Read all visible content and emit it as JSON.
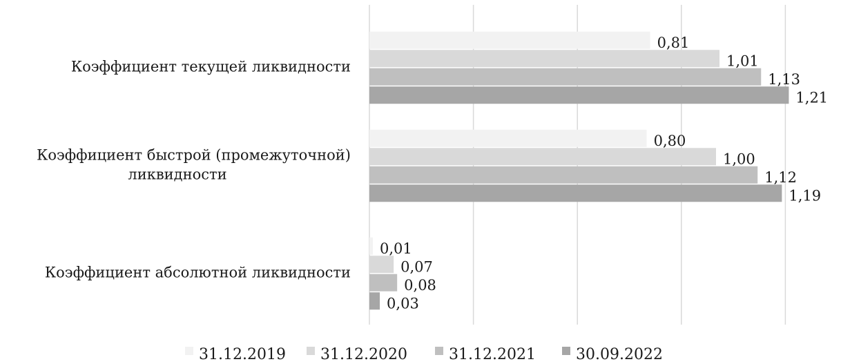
{
  "chart_data": {
    "type": "bar",
    "orientation": "horizontal",
    "categories": [
      [
        "Коэффициент текущей ликвидности"
      ],
      [
        "Коэффициент быстрой (промежуточной)",
        "ликвидности"
      ],
      [
        "Коэффициент абсолютной ликвидности"
      ]
    ],
    "series": [
      {
        "name": "31.12.2019",
        "values": [
          0.81,
          0.8,
          0.01
        ],
        "labels": [
          "0,81",
          "0,80",
          "0,01"
        ],
        "color": "#f2f2f2"
      },
      {
        "name": "31.12.2020",
        "values": [
          1.01,
          1.0,
          0.07
        ],
        "labels": [
          "1,01",
          "1,00",
          "0,07"
        ],
        "color": "#d9d9d9"
      },
      {
        "name": "31.12.2021",
        "values": [
          1.13,
          1.12,
          0.08
        ],
        "labels": [
          "1,13",
          "1,12",
          "0,08"
        ],
        "color": "#bfbfbf"
      },
      {
        "name": "30.09.2022",
        "values": [
          1.21,
          1.19,
          0.03
        ],
        "labels": [
          "1,21",
          "1,19",
          "0,03"
        ],
        "color": "#a6a6a6"
      }
    ],
    "xlim": [
      0,
      1.4
    ],
    "grid": true,
    "gridline_values": [
      0,
      0.3,
      0.6,
      0.9,
      1.2
    ],
    "legend": "bottom-center",
    "title": "",
    "xlabel": "",
    "ylabel": ""
  }
}
